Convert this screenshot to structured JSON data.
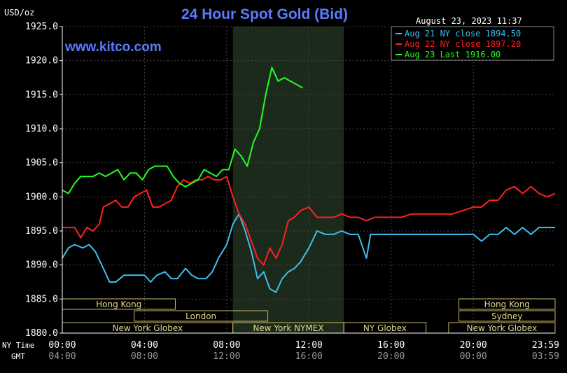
{
  "chart_data": {
    "type": "line",
    "title": "24 Hour Spot Gold (Bid)",
    "ylabel": "USD/oz",
    "timestamp": "August 23, 2023 11:37",
    "watermark": "www.kitco.com",
    "ylim": [
      1880,
      1925
    ],
    "grid": true,
    "legend_position": "top-right",
    "y_ticks": [
      "1925.0",
      "1920.0",
      "1915.0",
      "1910.0",
      "1905.0",
      "1900.0",
      "1895.0",
      "1890.0",
      "1885.0",
      "1880.0"
    ],
    "x_row_label_ny": "NY Time",
    "x_row_label_gmt": "GMT",
    "x_ticks_ny": [
      "00:00",
      "04:00",
      "08:00",
      "12:00",
      "16:00",
      "20:00",
      "23:59"
    ],
    "x_ticks_gmt": [
      "04:00",
      "08:00",
      "12:00",
      "16:00",
      "20:00",
      "00:00",
      "03:59"
    ],
    "sessions": [
      {
        "label": "Hong Kong",
        "row": 0,
        "start": 0,
        "end": 5.5
      },
      {
        "label": "London",
        "row": 1,
        "start": 3.5,
        "end": 10.0
      },
      {
        "label": "New York Globex",
        "row": 2,
        "start": 0,
        "end": 8.3
      },
      {
        "label": "New York NYMEX",
        "row": 2,
        "start": 8.3,
        "end": 13.7
      },
      {
        "label": "NY Globex",
        "row": 2,
        "start": 13.7,
        "end": 17.7
      },
      {
        "label": "Hong Kong",
        "row": 0,
        "start": 19.3,
        "end": 23.98
      },
      {
        "label": "Sydney",
        "row": 1,
        "start": 19.3,
        "end": 23.98
      },
      {
        "label": "New York Globex",
        "row": 2,
        "start": 18.8,
        "end": 23.98
      }
    ],
    "shaded_range": [
      8.3,
      13.7
    ],
    "series": [
      {
        "name": "Aug 21 NY close 1894.50",
        "color": "#3fbfef",
        "x": [
          0,
          0.3,
          0.6,
          1,
          1.3,
          1.6,
          2,
          2.3,
          2.6,
          3,
          3.3,
          3.6,
          4,
          4.3,
          4.6,
          5,
          5.3,
          5.6,
          6,
          6.3,
          6.6,
          7,
          7.3,
          7.6,
          8,
          8.3,
          8.6,
          8.9,
          9.2,
          9.5,
          9.8,
          10.1,
          10.4,
          10.7,
          11,
          11.3,
          11.6,
          12,
          12.4,
          12.8,
          13.2,
          13.6,
          14,
          14.4,
          14.8,
          15,
          15.4,
          15.8,
          16.2,
          16.6,
          17,
          17.5,
          18,
          18.5,
          19,
          19.5,
          20,
          20.4,
          20.8,
          21.2,
          21.6,
          22,
          22.4,
          22.8,
          23.2,
          23.6,
          23.98
        ],
        "y": [
          1891,
          1892.5,
          1893,
          1892.5,
          1893,
          1892,
          1889.5,
          1887.5,
          1887.5,
          1888.5,
          1888.5,
          1888.5,
          1888.5,
          1887.5,
          1888.5,
          1889,
          1888,
          1888,
          1889.5,
          1888.5,
          1888,
          1888,
          1889,
          1891,
          1893,
          1896,
          1897.5,
          1895,
          1892,
          1888,
          1889,
          1886.5,
          1886,
          1888,
          1889,
          1889.5,
          1890.5,
          1892.5,
          1895,
          1894.5,
          1894.5,
          1895,
          1894.5,
          1894.5,
          1891,
          1894.5,
          1894.5,
          1894.5,
          1894.5,
          1894.5,
          1894.5,
          1894.5,
          1894.5,
          1894.5,
          1894.5,
          1894.5,
          1894.5,
          1893.5,
          1894.5,
          1894.5,
          1895.5,
          1894.5,
          1895.5,
          1894.5,
          1895.5,
          1895.5,
          1895.5
        ]
      },
      {
        "name": "Aug 22 NY close 1897.20",
        "color": "#ff2020",
        "x": [
          0,
          0.3,
          0.6,
          0.9,
          1.2,
          1.5,
          1.8,
          2,
          2.3,
          2.6,
          2.9,
          3.2,
          3.5,
          3.8,
          4.1,
          4.4,
          4.7,
          5,
          5.3,
          5.6,
          5.9,
          6.2,
          6.5,
          6.8,
          7.1,
          7.4,
          7.7,
          8,
          8.3,
          8.6,
          8.9,
          9.2,
          9.5,
          9.8,
          10.1,
          10.4,
          10.7,
          11,
          11.3,
          11.6,
          12,
          12.4,
          12.8,
          13.2,
          13.6,
          14,
          14.4,
          14.8,
          15.2,
          15.6,
          16,
          16.5,
          17,
          17.5,
          18,
          18.5,
          19,
          19.5,
          20,
          20.4,
          20.8,
          21.2,
          21.6,
          22,
          22.4,
          22.8,
          23.2,
          23.6,
          23.98
        ],
        "y": [
          1895.5,
          1895.5,
          1895.5,
          1894,
          1895.5,
          1895,
          1896,
          1898.5,
          1899,
          1899.5,
          1898.5,
          1898.5,
          1900,
          1900.5,
          1901,
          1898.5,
          1898.5,
          1899,
          1899.5,
          1901.5,
          1902.5,
          1902,
          1902.5,
          1902.5,
          1903,
          1902.5,
          1902.5,
          1903,
          1900,
          1897.5,
          1896,
          1893.5,
          1891,
          1890,
          1892.5,
          1891,
          1893,
          1896.5,
          1897,
          1898,
          1898.5,
          1897,
          1897,
          1897,
          1897.5,
          1897,
          1897,
          1896.5,
          1897,
          1897,
          1897,
          1897,
          1897.5,
          1897.5,
          1897.5,
          1897.5,
          1897.5,
          1898,
          1898.5,
          1898.5,
          1899.5,
          1899.5,
          1901,
          1901.5,
          1900.5,
          1901.5,
          1900.5,
          1900,
          1900.5
        ]
      },
      {
        "name": "Aug 23 Last 1916.00",
        "color": "#20ff20",
        "x": [
          0,
          0.3,
          0.6,
          0.9,
          1.2,
          1.5,
          1.8,
          2.1,
          2.4,
          2.7,
          3,
          3.3,
          3.6,
          3.9,
          4.2,
          4.5,
          4.8,
          5.1,
          5.4,
          5.7,
          6,
          6.3,
          6.6,
          6.9,
          7.2,
          7.5,
          7.8,
          8.1,
          8.4,
          8.7,
          9,
          9.3,
          9.6,
          9.9,
          10.2,
          10.5,
          10.8,
          11.1,
          11.4,
          11.7,
          12,
          12.3,
          12.6,
          12.9,
          13.2,
          13.5,
          13.8,
          14.1,
          14.4,
          14.7,
          15,
          15.3,
          15.6,
          15.9,
          16.2,
          16.5,
          16.8,
          17.1,
          17.4,
          17.7,
          18,
          18.3,
          18.6,
          18.9,
          19.2,
          19.5,
          19.8,
          20.1,
          20.4,
          20.7,
          21,
          21.3,
          21.6,
          21.9,
          22.2,
          22.5,
          22.8,
          23.1,
          23.4,
          23.7,
          23.98
        ],
        "y": [
          1901,
          1900.5,
          1902,
          1903,
          1903,
          1903,
          1903.5,
          1903,
          1903.5,
          1904,
          1902.5,
          1903.5,
          1903.5,
          1902.5,
          1904,
          1904.5,
          1904.5,
          1904.5,
          1903,
          1902,
          1901.5,
          1902,
          1902.5,
          1904,
          1903.5,
          1903,
          1904,
          1904,
          1907,
          1906,
          1904.5,
          1908,
          1910,
          1915,
          1919,
          1917,
          1917.5,
          1917,
          1916.5,
          1916,
          null,
          null,
          null,
          null,
          null,
          null,
          null,
          null,
          null,
          null,
          null,
          null,
          null,
          null,
          null,
          null,
          null,
          null,
          null,
          null,
          null,
          null,
          null,
          null,
          null,
          null,
          null,
          null,
          null,
          null,
          null,
          null,
          null,
          null,
          null,
          null,
          null,
          null,
          null,
          null,
          null
        ]
      }
    ]
  }
}
